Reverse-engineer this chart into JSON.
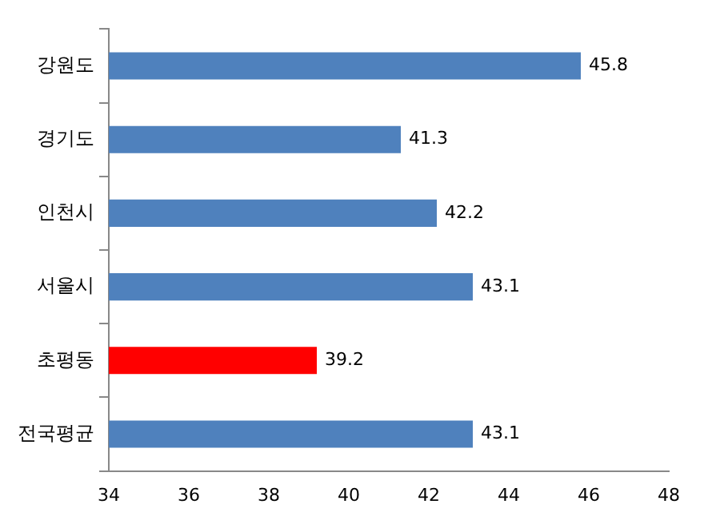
{
  "chart_data": {
    "type": "bar",
    "orientation": "horizontal",
    "categories": [
      "강원도",
      "경기도",
      "인천시",
      "서울시",
      "초평동",
      "전국평균"
    ],
    "values": [
      45.8,
      41.3,
      42.2,
      43.1,
      39.2,
      43.1
    ],
    "colors": [
      "#4f81bd",
      "#4f81bd",
      "#4f81bd",
      "#4f81bd",
      "#ff0000",
      "#4f81bd"
    ],
    "xlim": [
      34,
      48
    ],
    "xticks": [
      34,
      36,
      38,
      40,
      42,
      44,
      46,
      48
    ],
    "grid": false,
    "legend": false,
    "data_labels": true
  }
}
